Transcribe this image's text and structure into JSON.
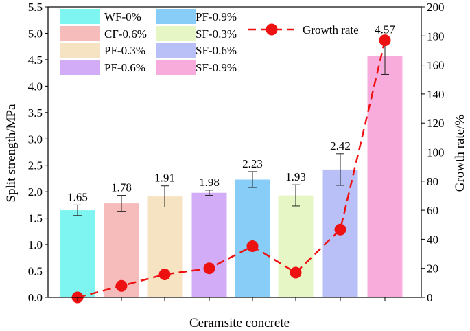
{
  "chart_data": {
    "type": "bar",
    "title": "",
    "xlabel": "Ceramsite concrete",
    "ylabel": "Split strength/MPa",
    "ylabel_right": "Growth rate/%",
    "ylim": [
      0,
      5.5
    ],
    "ylim_right": [
      0,
      200
    ],
    "yticks": [
      "0.0",
      "0.5",
      "1.0",
      "1.5",
      "2.0",
      "2.5",
      "3.0",
      "3.5",
      "4.0",
      "4.5",
      "5.0",
      "5.5"
    ],
    "yticks_right": [
      "0",
      "20",
      "40",
      "60",
      "80",
      "100",
      "120",
      "140",
      "160",
      "180",
      "200"
    ],
    "categories": [
      "WF-0%",
      "CF-0.6%",
      "PF-0.3%",
      "PF-0.6%",
      "PF-0.9%",
      "SF-0.3%",
      "SF-0.6%",
      "SF-0.9%"
    ],
    "values": [
      1.65,
      1.78,
      1.91,
      1.98,
      2.23,
      1.93,
      2.42,
      4.57
    ],
    "value_labels": [
      "1.65",
      "1.78",
      "1.91",
      "1.98",
      "2.23",
      "1.93",
      "2.42",
      "4.57"
    ],
    "error": [
      0.1,
      0.15,
      0.2,
      0.05,
      0.15,
      0.2,
      0.3,
      0.35
    ],
    "colors": [
      "#7ff5f2",
      "#f6bcbc",
      "#f6e3c2",
      "#d3acf7",
      "#87cdf7",
      "#e6f6c4",
      "#b8c0f7",
      "#f8acdc"
    ],
    "growth_series": {
      "name": "Growth rate",
      "values": [
        0,
        7.9,
        15.8,
        20.0,
        35.2,
        17.0,
        46.7,
        177.0
      ],
      "color": "#ee1111"
    },
    "legend_position": "top-left"
  }
}
